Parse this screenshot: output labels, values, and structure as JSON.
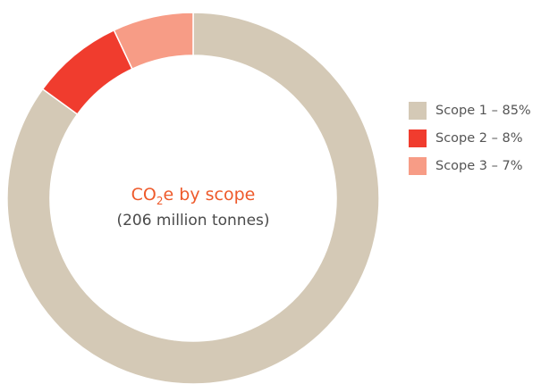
{
  "chart_data": {
    "type": "pie",
    "variant": "donut",
    "title_parts": [
      "CO",
      "2",
      "e by scope"
    ],
    "subtitle": "(206 million tonnes)",
    "legend_position": "right",
    "series": [
      {
        "name": "Scope 1 – 85%",
        "value": 85,
        "color": "#d4c9b6"
      },
      {
        "name": "Scope 2 – 8%",
        "value": 8,
        "color": "#f03c2e"
      },
      {
        "name": "Scope 3 – 7%",
        "value": 7,
        "color": "#f79c86"
      }
    ],
    "separator_color": "#ffffff"
  }
}
